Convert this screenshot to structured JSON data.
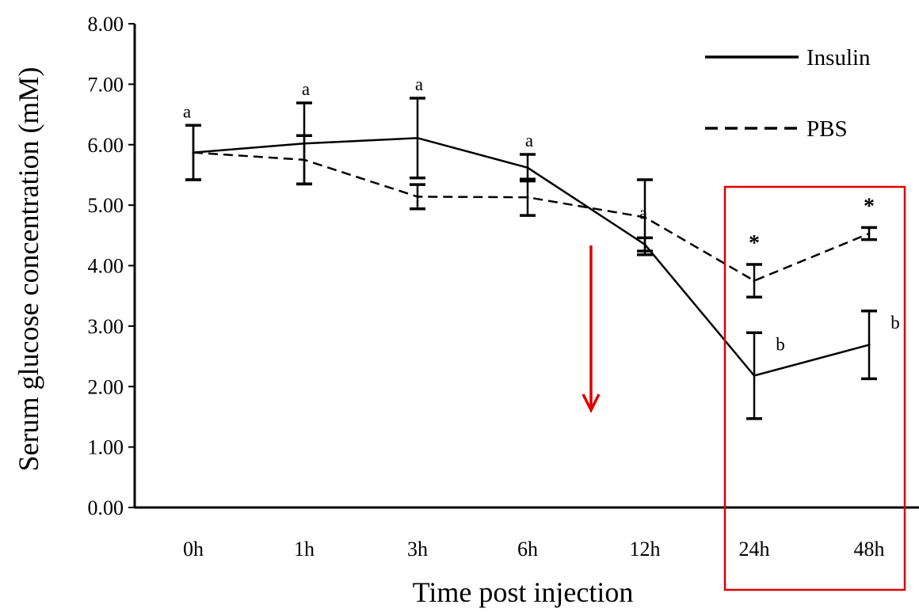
{
  "chart_data": {
    "type": "line",
    "categories": [
      "0h",
      "1h",
      "3h",
      "6h",
      "12h",
      "24h",
      "48h"
    ],
    "xlabel": "Time post injection",
    "ylabel": "Serum glucose concentration (mM)",
    "ylim": [
      0,
      8
    ],
    "yticks": [
      "0.00",
      "1.00",
      "2.00",
      "3.00",
      "4.00",
      "5.00",
      "6.00",
      "7.00",
      "8.00"
    ],
    "grid": false,
    "legend_position": "top-right",
    "series": [
      {
        "name": "Insulin",
        "style": "solid",
        "values": [
          5.87,
          6.02,
          6.11,
          5.62,
          4.35,
          2.18,
          2.69
        ],
        "errors": [
          0.45,
          0.67,
          0.66,
          0.22,
          0.11,
          0.71,
          0.56
        ],
        "labels": [
          "a",
          "a",
          "a",
          "a",
          "a",
          "b",
          "b"
        ]
      },
      {
        "name": "PBS",
        "style": "dashed",
        "values": [
          5.87,
          5.75,
          5.14,
          5.13,
          4.8,
          3.75,
          4.53
        ],
        "errors": [
          0.45,
          0.4,
          0.2,
          0.3,
          0.62,
          0.27,
          0.1
        ],
        "labels": [
          "",
          "",
          "",
          "",
          "",
          "*",
          "*"
        ]
      }
    ],
    "annotations": {
      "arrow_color": "#e00000",
      "highlight_box_color": "#e00000",
      "highlight_categories": [
        "24h",
        "48h"
      ]
    }
  }
}
